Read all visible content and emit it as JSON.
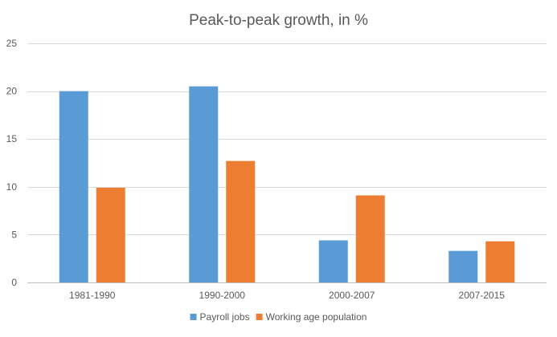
{
  "chart_data": {
    "type": "bar",
    "title": "Peak-to-peak growth, in %",
    "xlabel": "",
    "ylabel": "",
    "ylim": [
      0,
      25
    ],
    "yticks": [
      0,
      5,
      10,
      15,
      20,
      25
    ],
    "grid": true,
    "legend_position": "bottom",
    "categories": [
      "1981-1990",
      "1990-2000",
      "2000-2007",
      "2007-2015"
    ],
    "series": [
      {
        "name": "Payroll jobs",
        "color": "#5B9BD5",
        "values": [
          20.0,
          20.5,
          4.4,
          3.3
        ]
      },
      {
        "name": "Working age population",
        "color": "#ED7D31",
        "values": [
          9.9,
          12.7,
          9.1,
          4.3
        ]
      }
    ]
  }
}
